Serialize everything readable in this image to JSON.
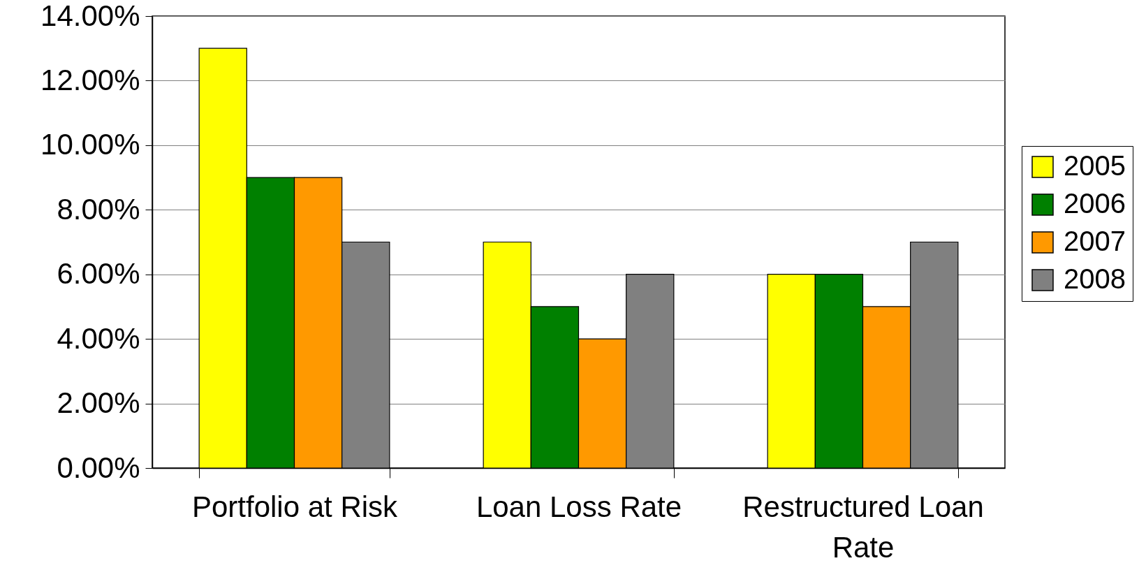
{
  "chart_data": {
    "type": "bar",
    "categories": [
      "Portfolio at Risk",
      "Loan Loss Rate",
      "Restructured Loan Rate"
    ],
    "series": [
      {
        "name": "2005",
        "color": "#ffff00",
        "values": [
          13,
          7,
          6
        ]
      },
      {
        "name": "2006",
        "color": "#008000",
        "values": [
          9,
          5,
          6
        ]
      },
      {
        "name": "2007",
        "color": "#ff9900",
        "values": [
          9,
          4,
          5
        ]
      },
      {
        "name": "2008",
        "color": "#808080",
        "values": [
          7,
          6,
          7
        ]
      }
    ],
    "ylim": [
      0,
      14
    ],
    "yticks": [
      {
        "value": 0,
        "label": "0.00%"
      },
      {
        "value": 2,
        "label": "2.00%"
      },
      {
        "value": 4,
        "label": "4.00%"
      },
      {
        "value": 6,
        "label": "6.00%"
      },
      {
        "value": 8,
        "label": "8.00%"
      },
      {
        "value": 10,
        "label": "10.00%"
      },
      {
        "value": 12,
        "label": "12.00%"
      },
      {
        "value": 14,
        "label": "14.00%"
      }
    ],
    "grid": "y",
    "legend": "right"
  }
}
